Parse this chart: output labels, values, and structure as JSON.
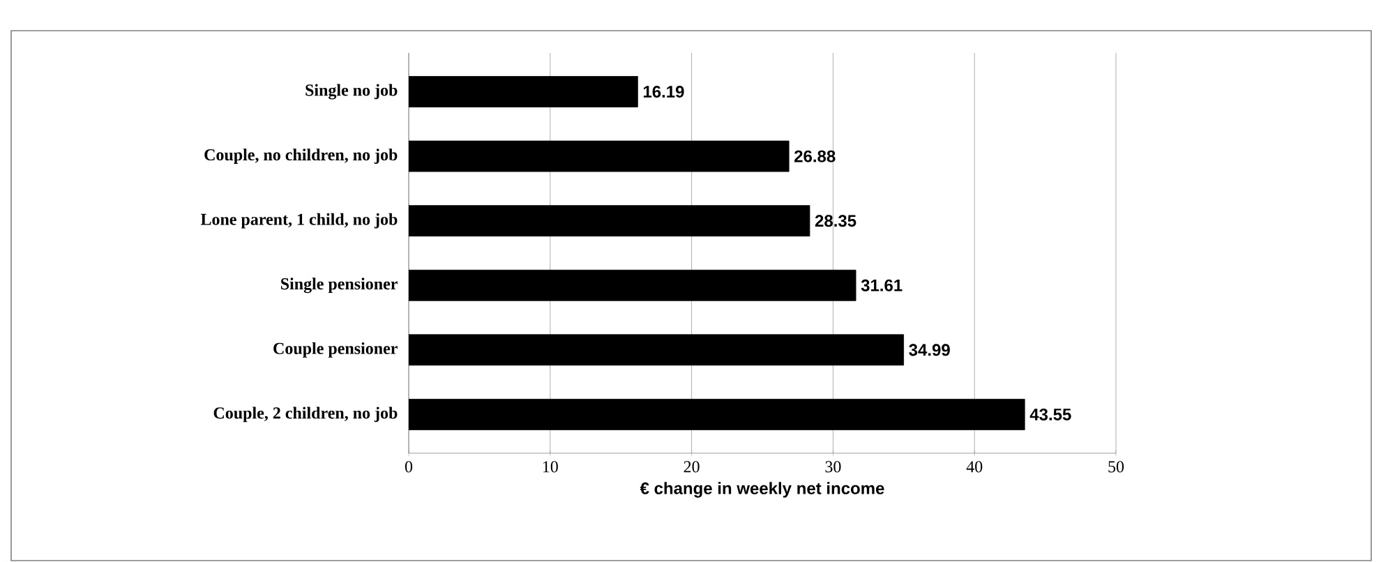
{
  "chart_data": {
    "type": "bar",
    "orientation": "horizontal",
    "xlabel": "€ change in weekly net income",
    "categories": [
      "Single no job",
      "Couple, no children, no job",
      "Lone parent, 1 child, no job",
      "Single pensioner",
      "Couple pensioner",
      "Couple, 2 children, no job"
    ],
    "values": [
      16.19,
      26.88,
      28.35,
      31.61,
      34.99,
      43.55
    ],
    "color": "#000000",
    "xlim": [
      0,
      50
    ],
    "xticks": [
      0,
      10,
      20,
      30,
      40,
      50
    ],
    "grid": "x",
    "data_labels": true
  }
}
